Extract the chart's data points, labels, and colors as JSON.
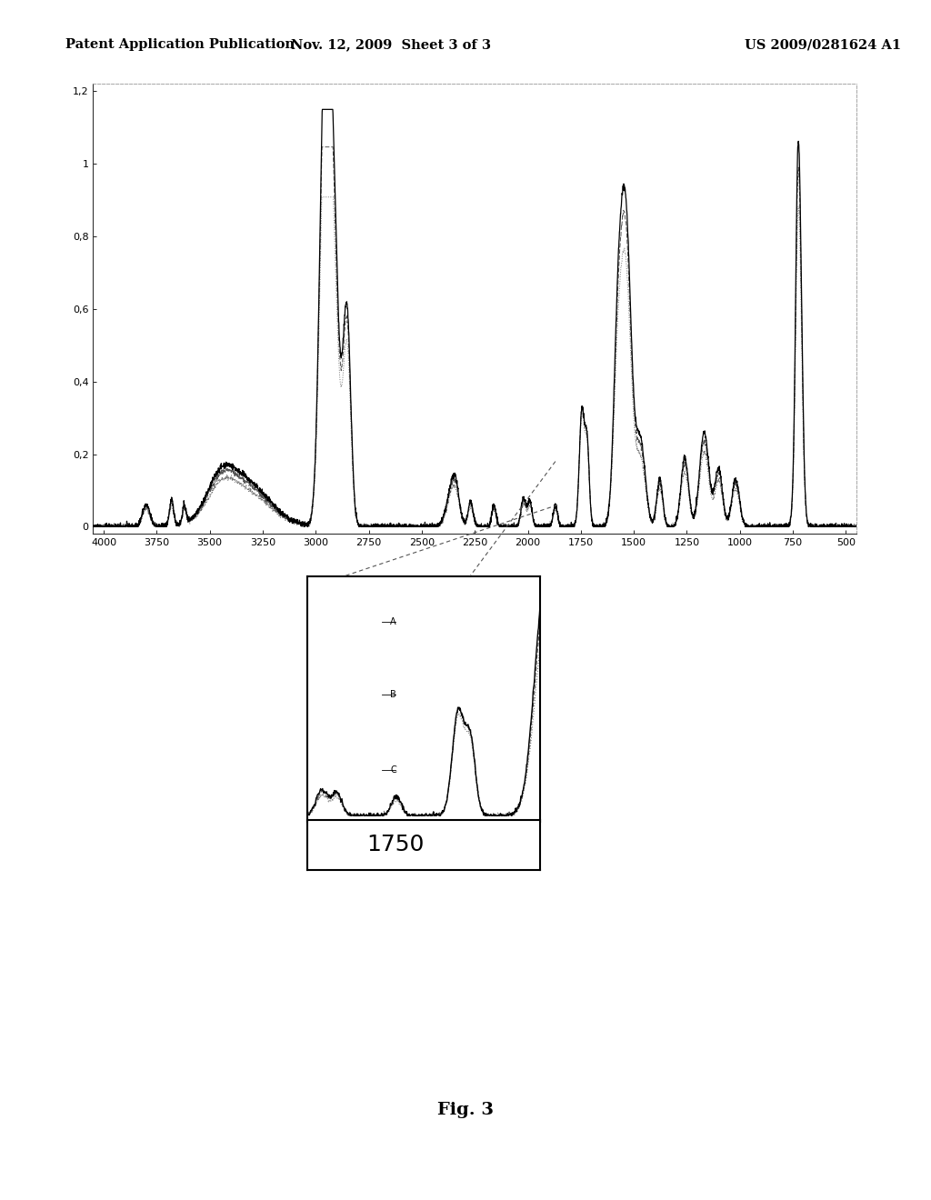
{
  "header_left": "Patent Application Publication",
  "header_center": "Nov. 12, 2009  Sheet 3 of 3",
  "header_right": "US 2009/0281624 A1",
  "fig_label": "Fig. 3",
  "main_plot": {
    "xlim": [
      4050,
      450
    ],
    "ylim": [
      -0.02,
      1.22
    ],
    "xticks": [
      4000,
      3750,
      3500,
      3250,
      3000,
      2750,
      2500,
      2250,
      2000,
      1750,
      1500,
      1250,
      1000,
      750,
      500
    ],
    "ytick_vals": [
      0,
      0.2,
      0.4,
      0.6,
      0.8,
      1.0,
      1.2
    ],
    "ytick_labels": [
      "0",
      "0,2",
      "0,4",
      "0,6",
      "0,8",
      "1",
      "1,2"
    ]
  },
  "bg_color": "#ffffff",
  "line_colors": [
    "#000000",
    "#444444",
    "#888888"
  ]
}
